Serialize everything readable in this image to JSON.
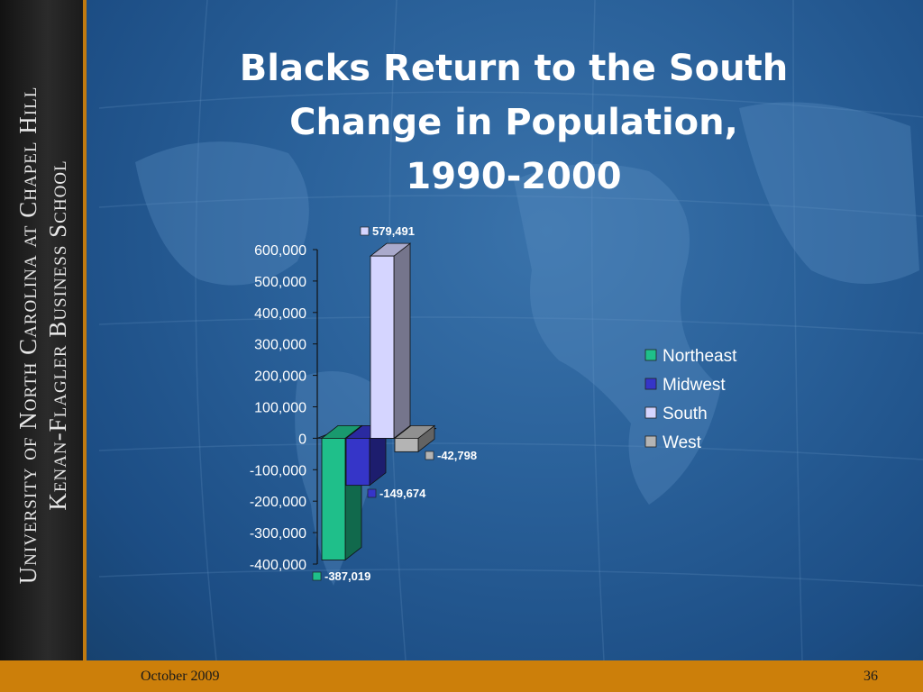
{
  "slide": {
    "title_line1": "Blacks Return to the South",
    "title_line2": "Change in Population,",
    "title_line3": "1990-2000",
    "sidebar_line1": "University of North Carolina at Chapel Hill",
    "sidebar_line2": "Kenan-Flagler Business School",
    "footer_date": "October 2009",
    "footer_page": "36"
  },
  "chart_data": {
    "type": "bar",
    "categories": [
      ""
    ],
    "series": [
      {
        "name": "Northeast",
        "values": [
          -387019
        ],
        "label": "-387,019",
        "color": "#1fbf8a"
      },
      {
        "name": "Midwest",
        "values": [
          -149674
        ],
        "label": "-149,674",
        "color": "#3535c8"
      },
      {
        "name": "South",
        "values": [
          579491
        ],
        "label": "579,491",
        "color": "#d5d5ff"
      },
      {
        "name": "West",
        "values": [
          -42798
        ],
        "label": "-42,798",
        "color": "#b4b4b4"
      }
    ],
    "yticks": [
      "600,000",
      "500,000",
      "400,000",
      "300,000",
      "200,000",
      "100,000",
      "0",
      "-100,000",
      "-200,000",
      "-300,000",
      "-400,000"
    ],
    "ytick_values": [
      600000,
      500000,
      400000,
      300000,
      200000,
      100000,
      0,
      -100000,
      -200000,
      -300000,
      -400000
    ],
    "ylim": [
      -400000,
      600000
    ],
    "legend": "right",
    "style": "3d-column"
  }
}
